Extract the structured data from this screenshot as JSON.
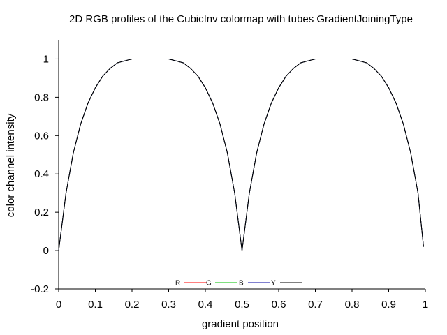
{
  "chart_data": {
    "type": "line",
    "title": "2D RGB profiles of the CubicInv colormap with tubes GradientJoiningType",
    "xlabel": "gradient position",
    "ylabel": "color channel intensity",
    "xlim": [
      0,
      1
    ],
    "ylim": [
      -0.2,
      1.1
    ],
    "x_ticks": [
      "0",
      "0.1",
      "0.2",
      "0.3",
      "0.4",
      "0.5",
      "0.6",
      "0.7",
      "0.8",
      "0.9",
      "1"
    ],
    "y_ticks": [
      "-0.2",
      "0",
      "0.2",
      "0.4",
      "0.6",
      "0.8",
      "1"
    ],
    "grid": false,
    "legend_position": "bottom-center",
    "series": [
      {
        "name": "R",
        "color": "#ff0000",
        "x": [
          0.0,
          0.02,
          0.04,
          0.06,
          0.08,
          0.1,
          0.12,
          0.14,
          0.16,
          0.18,
          0.2,
          0.22,
          0.24,
          0.26,
          0.28,
          0.3,
          0.32,
          0.34,
          0.36,
          0.38,
          0.4,
          0.42,
          0.44,
          0.46,
          0.48,
          0.5,
          0.52,
          0.54,
          0.56,
          0.58,
          0.6,
          0.62,
          0.64,
          0.66,
          0.68,
          0.7,
          0.72,
          0.74,
          0.76,
          0.78,
          0.8,
          0.82,
          0.84,
          0.86,
          0.88,
          0.9,
          0.92,
          0.94,
          0.96,
          0.98,
          0.995
        ],
        "values": [
          0.0,
          0.3,
          0.51,
          0.66,
          0.77,
          0.85,
          0.91,
          0.95,
          0.98,
          0.99,
          1.0,
          1.0,
          1.0,
          1.0,
          1.0,
          1.0,
          0.99,
          0.98,
          0.95,
          0.91,
          0.85,
          0.77,
          0.66,
          0.51,
          0.3,
          0.0,
          0.3,
          0.51,
          0.66,
          0.77,
          0.85,
          0.91,
          0.95,
          0.98,
          0.99,
          1.0,
          1.0,
          1.0,
          1.0,
          1.0,
          1.0,
          0.99,
          0.98,
          0.95,
          0.91,
          0.85,
          0.77,
          0.66,
          0.51,
          0.3,
          0.02
        ]
      },
      {
        "name": "G",
        "color": "#00c000",
        "x": [
          0.0,
          0.02,
          0.04,
          0.06,
          0.08,
          0.1,
          0.12,
          0.14,
          0.16,
          0.18,
          0.2,
          0.22,
          0.24,
          0.26,
          0.28,
          0.3,
          0.32,
          0.34,
          0.36,
          0.38,
          0.4,
          0.42,
          0.44,
          0.46,
          0.48,
          0.5,
          0.52,
          0.54,
          0.56,
          0.58,
          0.6,
          0.62,
          0.64,
          0.66,
          0.68,
          0.7,
          0.72,
          0.74,
          0.76,
          0.78,
          0.8,
          0.82,
          0.84,
          0.86,
          0.88,
          0.9,
          0.92,
          0.94,
          0.96,
          0.98,
          0.995
        ],
        "values": [
          0.0,
          0.3,
          0.51,
          0.66,
          0.77,
          0.85,
          0.91,
          0.95,
          0.98,
          0.99,
          1.0,
          1.0,
          1.0,
          1.0,
          1.0,
          1.0,
          0.99,
          0.98,
          0.95,
          0.91,
          0.85,
          0.77,
          0.66,
          0.51,
          0.3,
          0.0,
          0.3,
          0.51,
          0.66,
          0.77,
          0.85,
          0.91,
          0.95,
          0.98,
          0.99,
          1.0,
          1.0,
          1.0,
          1.0,
          1.0,
          1.0,
          0.99,
          0.98,
          0.95,
          0.91,
          0.85,
          0.77,
          0.66,
          0.51,
          0.3,
          0.02
        ]
      },
      {
        "name": "B",
        "color": "#0000a0",
        "x": [
          0.0,
          0.02,
          0.04,
          0.06,
          0.08,
          0.1,
          0.12,
          0.14,
          0.16,
          0.18,
          0.2,
          0.22,
          0.24,
          0.26,
          0.28,
          0.3,
          0.32,
          0.34,
          0.36,
          0.38,
          0.4,
          0.42,
          0.44,
          0.46,
          0.48,
          0.5,
          0.52,
          0.54,
          0.56,
          0.58,
          0.6,
          0.62,
          0.64,
          0.66,
          0.68,
          0.7,
          0.72,
          0.74,
          0.76,
          0.78,
          0.8,
          0.82,
          0.84,
          0.86,
          0.88,
          0.9,
          0.92,
          0.94,
          0.96,
          0.98,
          0.995
        ],
        "values": [
          0.0,
          0.3,
          0.51,
          0.66,
          0.77,
          0.85,
          0.91,
          0.95,
          0.98,
          0.99,
          1.0,
          1.0,
          1.0,
          1.0,
          1.0,
          1.0,
          0.99,
          0.98,
          0.95,
          0.91,
          0.85,
          0.77,
          0.66,
          0.51,
          0.3,
          0.0,
          0.3,
          0.51,
          0.66,
          0.77,
          0.85,
          0.91,
          0.95,
          0.98,
          0.99,
          1.0,
          1.0,
          1.0,
          1.0,
          1.0,
          1.0,
          0.99,
          0.98,
          0.95,
          0.91,
          0.85,
          0.77,
          0.66,
          0.51,
          0.3,
          0.02
        ]
      },
      {
        "name": "Y",
        "color": "#000000",
        "x": [
          0.0,
          0.02,
          0.04,
          0.06,
          0.08,
          0.1,
          0.12,
          0.14,
          0.16,
          0.18,
          0.2,
          0.22,
          0.24,
          0.26,
          0.28,
          0.3,
          0.32,
          0.34,
          0.36,
          0.38,
          0.4,
          0.42,
          0.44,
          0.46,
          0.48,
          0.5,
          0.52,
          0.54,
          0.56,
          0.58,
          0.6,
          0.62,
          0.64,
          0.66,
          0.68,
          0.7,
          0.72,
          0.74,
          0.76,
          0.78,
          0.8,
          0.82,
          0.84,
          0.86,
          0.88,
          0.9,
          0.92,
          0.94,
          0.96,
          0.98,
          0.995
        ],
        "values": [
          0.0,
          0.3,
          0.51,
          0.66,
          0.77,
          0.85,
          0.91,
          0.95,
          0.98,
          0.99,
          1.0,
          1.0,
          1.0,
          1.0,
          1.0,
          1.0,
          0.99,
          0.98,
          0.95,
          0.91,
          0.85,
          0.77,
          0.66,
          0.51,
          0.3,
          0.0,
          0.3,
          0.51,
          0.66,
          0.77,
          0.85,
          0.91,
          0.95,
          0.98,
          0.99,
          1.0,
          1.0,
          1.0,
          1.0,
          1.0,
          1.0,
          0.99,
          0.98,
          0.95,
          0.91,
          0.85,
          0.77,
          0.66,
          0.51,
          0.3,
          0.02
        ]
      }
    ]
  }
}
